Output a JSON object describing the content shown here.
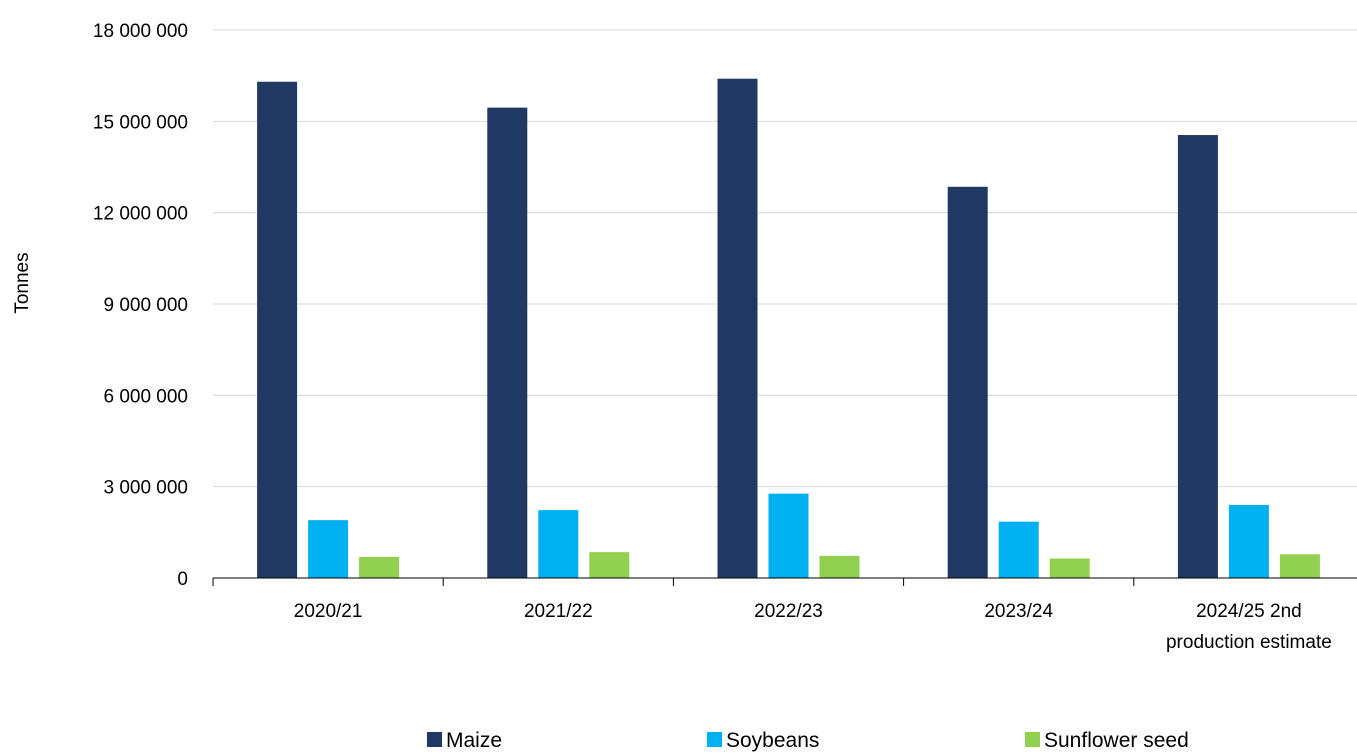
{
  "chart_data": {
    "type": "bar",
    "title": "",
    "xlabel": "",
    "ylabel": "Tonnes",
    "ylim": [
      0,
      18000000
    ],
    "yticks": [
      0,
      3000000,
      6000000,
      9000000,
      12000000,
      15000000,
      18000000
    ],
    "ytick_labels": [
      "0",
      "3 000 000",
      "6 000 000",
      "9 000 000",
      "12 000 000",
      "15 000 000",
      "18 000 000"
    ],
    "categories": [
      "2020/21",
      "2021/22",
      "2022/23",
      "2023/24",
      "2024/25 2nd production estimate"
    ],
    "category_label_lines": [
      [
        "2020/21"
      ],
      [
        "2021/22"
      ],
      [
        "2022/23"
      ],
      [
        "2023/24"
      ],
      [
        "2024/25 2nd",
        "production estimate"
      ]
    ],
    "series": [
      {
        "name": "Maize",
        "color": "#203864",
        "values": [
          16300000,
          15450000,
          16400000,
          12850000,
          14550000
        ]
      },
      {
        "name": "Soybeans",
        "color": "#00B0F0",
        "values": [
          1900000,
          2230000,
          2770000,
          1850000,
          2400000
        ]
      },
      {
        "name": "Sunflower seed",
        "color": "#92D050",
        "values": [
          690000,
          850000,
          730000,
          640000,
          780000
        ]
      }
    ],
    "grid": true,
    "legend_position": "bottom"
  }
}
